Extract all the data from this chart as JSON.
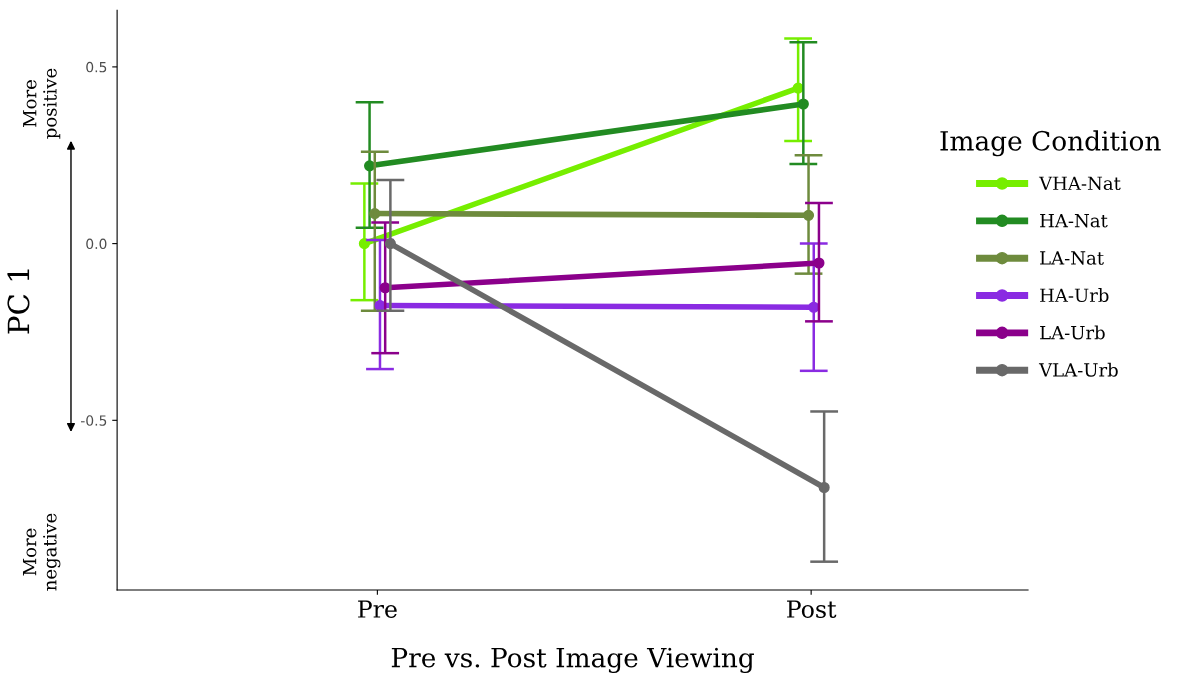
{
  "chart_data": {
    "type": "line",
    "xlabel": "Pre vs. Post Image Viewing",
    "ylabel": "PC 1",
    "legend_title": "Image Condition",
    "categories": [
      "Pre",
      "Post"
    ],
    "series": [
      {
        "name": "VHA-Nat",
        "color": "#76ee00",
        "values": [
          0.0,
          0.44
        ],
        "errors": [
          [
            -0.16,
            0.17
          ],
          [
            0.29,
            0.58
          ]
        ]
      },
      {
        "name": "HA-Nat",
        "color": "#228b22",
        "values": [
          0.22,
          0.395
        ],
        "errors": [
          [
            0.045,
            0.4
          ],
          [
            0.225,
            0.57
          ]
        ]
      },
      {
        "name": "LA-Nat",
        "color": "#6e8b3d",
        "values": [
          0.085,
          0.08
        ],
        "errors": [
          [
            -0.19,
            0.26
          ],
          [
            -0.085,
            0.25
          ]
        ]
      },
      {
        "name": "HA-Urb",
        "color": "#8a2be2",
        "values": [
          -0.175,
          -0.18
        ],
        "errors": [
          [
            -0.355,
            0.01
          ],
          [
            -0.36,
            0.0
          ]
        ]
      },
      {
        "name": "LA-Urb",
        "color": "#8b008b",
        "values": [
          -0.125,
          -0.055
        ],
        "errors": [
          [
            -0.31,
            0.06
          ],
          [
            -0.22,
            0.115
          ]
        ]
      },
      {
        "name": "VLA-Urb",
        "color": "#696969",
        "values": [
          0.0,
          -0.69
        ],
        "errors": [
          [
            -0.19,
            0.18
          ],
          [
            -0.9,
            -0.475
          ]
        ]
      }
    ],
    "ylim": [
      -0.98,
      0.66
    ],
    "yticks": [
      {
        "value": -0.5,
        "label": "-0.5"
      },
      {
        "value": 0.0,
        "label": "0.0"
      },
      {
        "value": 0.5,
        "label": "0.5"
      }
    ],
    "annotations": [
      "More\npositive",
      "More\nnegative"
    ],
    "marker": "circle",
    "line_style": "solid",
    "grid": false,
    "legend": "right"
  }
}
